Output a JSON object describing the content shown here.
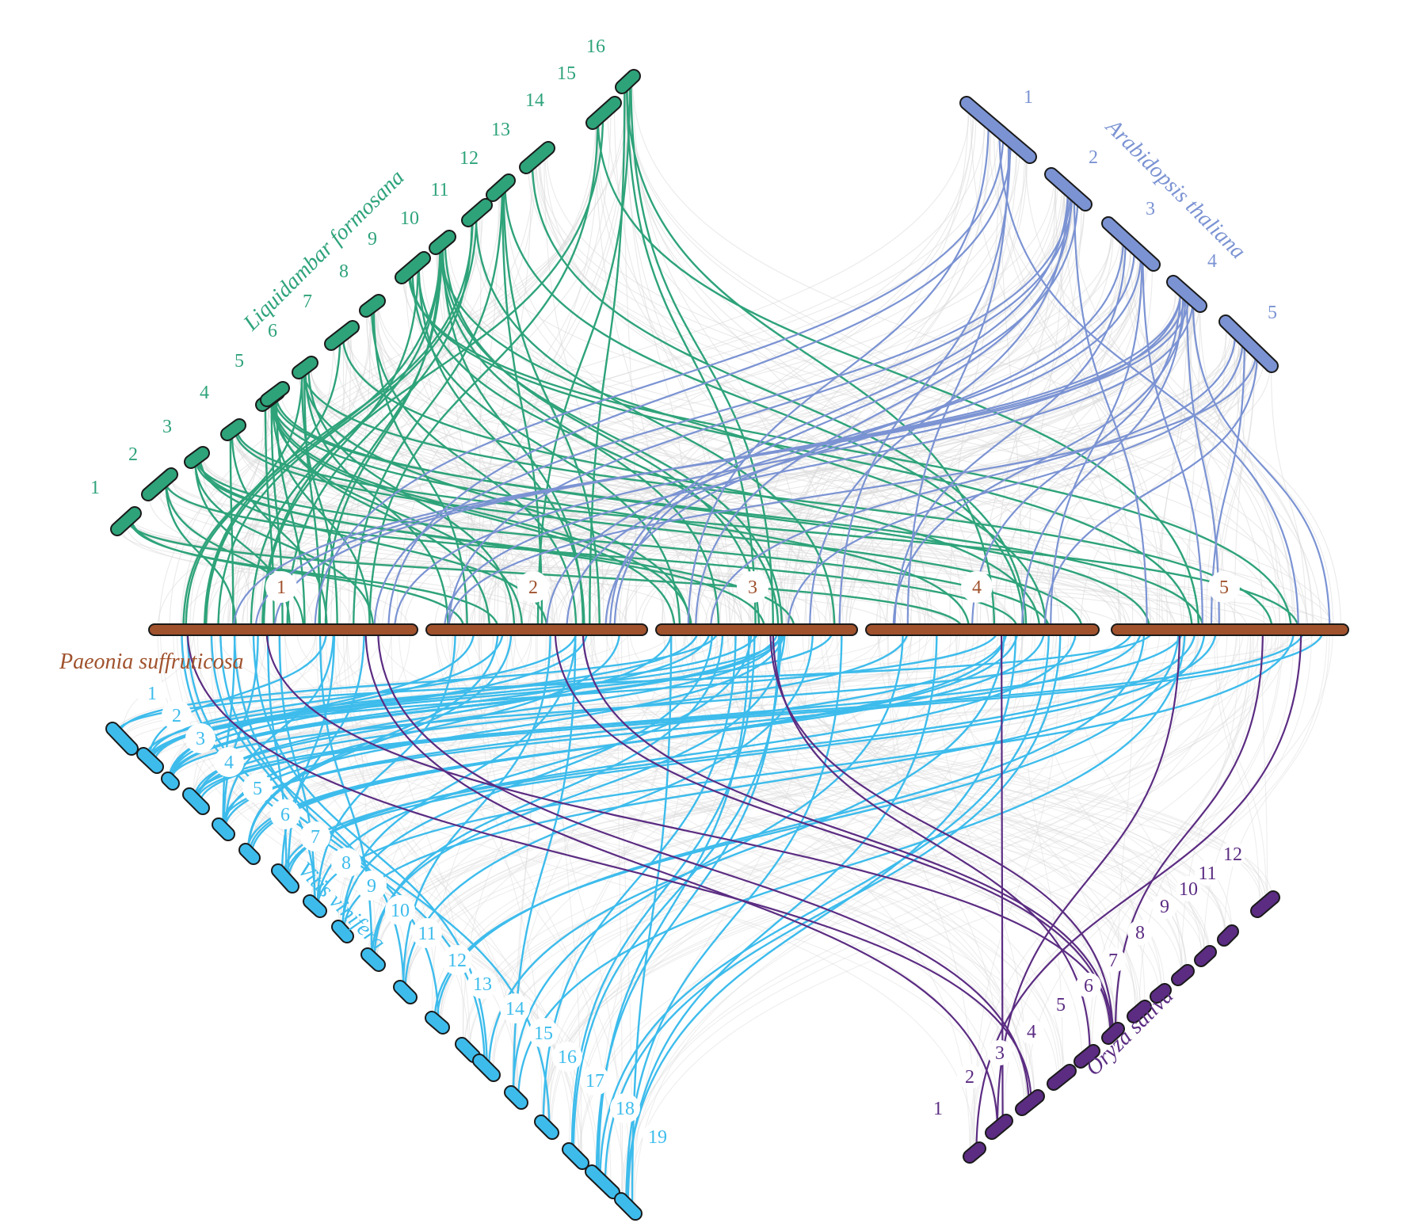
{
  "species": {
    "paeonia": {
      "name": "Paeonia suffruticosa",
      "color": "#a0522d",
      "chromosomes": [
        "1",
        "2",
        "3",
        "4",
        "5"
      ]
    },
    "liquidambar": {
      "name": "Liquidambar  formosana",
      "color": "#2ea37a",
      "chromosomes": [
        "1",
        "2",
        "3",
        "4",
        "5",
        "6",
        "7",
        "8",
        "9",
        "10",
        "11",
        "12",
        "13",
        "14",
        "15",
        "16"
      ]
    },
    "arabidopsis": {
      "name": "Arabidopsis  thaliana",
      "color": "#7b93d3",
      "chromosomes": [
        "1",
        "2",
        "3",
        "4",
        "5"
      ]
    },
    "vitis": {
      "name": "Vitis vinifera",
      "color": "#3dbcec",
      "chromosomes": [
        "1",
        "2",
        "3",
        "4",
        "5",
        "6",
        "7",
        "8",
        "9",
        "10",
        "11",
        "12",
        "13",
        "14",
        "15",
        "16",
        "17",
        "18",
        "19"
      ]
    },
    "oryza": {
      "name": "Oryza  sativa",
      "color": "#5b2c82",
      "chromosomes": [
        "1",
        "2",
        "3",
        "4",
        "5",
        "6",
        "7",
        "8",
        "9",
        "10",
        "11",
        "12"
      ]
    }
  },
  "colors": {
    "background_links": "#d9d9d9",
    "outline": "#1a1a1a"
  }
}
